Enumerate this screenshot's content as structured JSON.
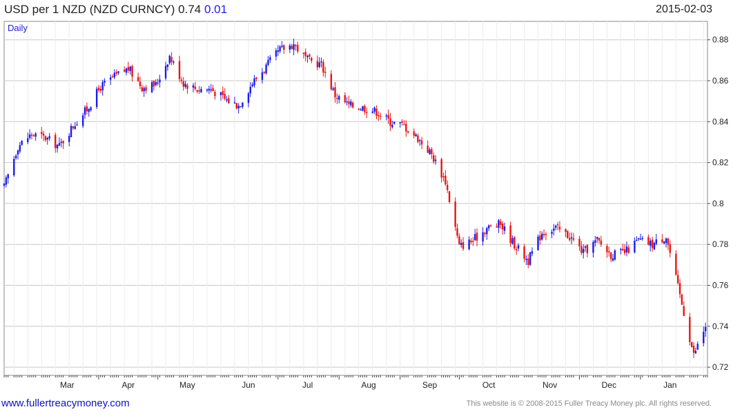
{
  "header": {
    "title": "USD per 1 NZD (NZD CURNCY) 0.74",
    "change": "0.01",
    "date": "2015-02-03"
  },
  "footer": {
    "site": "www.fullertreacymoney.com",
    "copyright": "This website is © 2008-2015 Fuller Treacy Money plc. All rights reserved."
  },
  "colors": {
    "up": "#1a1aee",
    "down": "#ee1111",
    "grid": "#d8d8d8",
    "axis": "#444444"
  },
  "chart_data": {
    "type": "ohlc-bar",
    "period_label": "Daily",
    "x_tick_labels": [
      "Mar",
      "Apr",
      "May",
      "Jun",
      "Jul",
      "Aug",
      "Sep",
      "Oct",
      "Nov",
      "Dec",
      "Jan"
    ],
    "y_ticks": [
      0.72,
      0.74,
      0.76,
      0.78,
      0.8,
      0.82,
      0.84,
      0.86,
      0.88
    ],
    "ylim": [
      0.716,
      0.889
    ],
    "xlim": [
      "2014-02-12",
      "2015-02-04"
    ],
    "series": [
      {
        "points": [
          [
            "2014-02-12",
            0.808
          ],
          [
            "2014-02-19",
            0.828
          ],
          [
            "2014-02-26",
            0.834
          ],
          [
            "2014-03-05",
            0.832
          ],
          [
            "2014-03-12",
            0.828
          ],
          [
            "2014-03-19",
            0.838
          ],
          [
            "2014-03-26",
            0.846
          ],
          [
            "2014-04-02",
            0.857
          ],
          [
            "2014-04-09",
            0.862
          ],
          [
            "2014-04-16",
            0.866
          ],
          [
            "2014-04-23",
            0.857
          ],
          [
            "2014-04-30",
            0.858
          ],
          [
            "2014-05-07",
            0.872
          ],
          [
            "2014-05-14",
            0.859
          ],
          [
            "2014-05-21",
            0.856
          ],
          [
            "2014-05-28",
            0.856
          ],
          [
            "2014-06-04",
            0.851
          ],
          [
            "2014-06-11",
            0.848
          ],
          [
            "2014-06-18",
            0.859
          ],
          [
            "2014-06-25",
            0.867
          ],
          [
            "2014-07-02",
            0.875
          ],
          [
            "2014-07-09",
            0.878
          ],
          [
            "2014-07-16",
            0.87
          ],
          [
            "2014-07-23",
            0.868
          ],
          [
            "2014-07-30",
            0.853
          ],
          [
            "2014-08-06",
            0.848
          ],
          [
            "2014-08-13",
            0.847
          ],
          [
            "2014-08-20",
            0.845
          ],
          [
            "2014-08-27",
            0.84
          ],
          [
            "2014-09-03",
            0.838
          ],
          [
            "2014-09-10",
            0.832
          ],
          [
            "2014-09-17",
            0.824
          ],
          [
            "2014-09-24",
            0.811
          ],
          [
            "2014-10-01",
            0.779
          ],
          [
            "2014-10-08",
            0.782
          ],
          [
            "2014-10-15",
            0.788
          ],
          [
            "2014-10-22",
            0.79
          ],
          [
            "2014-10-29",
            0.78
          ],
          [
            "2014-11-05",
            0.772
          ],
          [
            "2014-11-12",
            0.786
          ],
          [
            "2014-11-19",
            0.788
          ],
          [
            "2014-11-26",
            0.784
          ],
          [
            "2014-12-03",
            0.776
          ],
          [
            "2014-12-10",
            0.782
          ],
          [
            "2014-12-17",
            0.775
          ],
          [
            "2014-12-24",
            0.776
          ],
          [
            "2014-12-31",
            0.782
          ],
          [
            "2015-01-07",
            0.78
          ],
          [
            "2015-01-14",
            0.784
          ],
          [
            "2015-01-21",
            0.755
          ],
          [
            "2015-01-28",
            0.726
          ],
          [
            "2015-02-03",
            0.74
          ]
        ]
      }
    ]
  }
}
